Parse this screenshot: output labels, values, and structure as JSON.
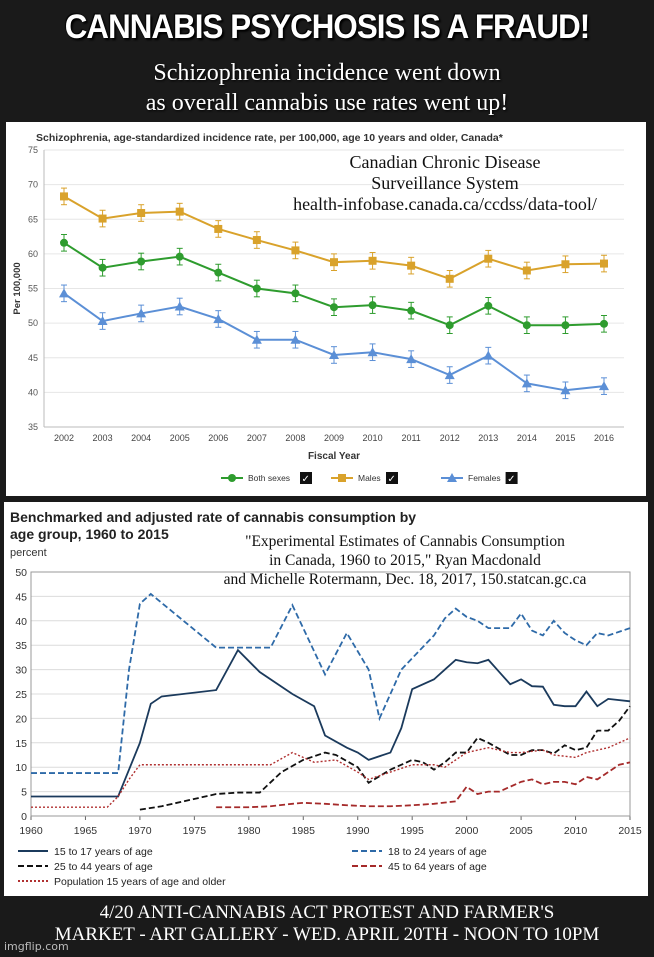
{
  "meme": {
    "title": "CANNABIS PSYCHOSIS IS A FRAUD!",
    "subtitle_line1": "Schizophrenia incidence went down",
    "subtitle_line2": "as overall cannabis use rates went up!",
    "footer_line1": "4/20 ANTI-CANNABIS ACT PROTEST AND FARMER'S",
    "footer_line2": "MARKET - ART GALLERY - WED. APRIL 20TH - NOON TO 10PM",
    "watermark": "imgflip.com"
  },
  "overlays": {
    "source1": [
      "Canadian Chronic Disease",
      "Surveillance System",
      "health-infobase.canada.ca/ccdss/data-tool/"
    ],
    "source2": [
      "\"Experimental Estimates of Cannabis Consumption",
      "in Canada, 1960 to 2015,\" Ryan Macdonald",
      "and Michelle Rotermann, Dec. 18, 2017, 150.statcan.gc.ca"
    ]
  },
  "chart_data": [
    {
      "type": "line",
      "title": "Schizophrenia, age-standardized incidence rate, per 100,000, age 10 years and older, Canada*",
      "xlabel": "Fiscal Year",
      "ylabel": "Per 100,000",
      "ylim": [
        35,
        75
      ],
      "yticks": [
        35,
        40,
        45,
        50,
        55,
        60,
        65,
        70,
        75
      ],
      "grid": true,
      "legend_position": "bottom",
      "x": [
        2002,
        2003,
        2004,
        2005,
        2006,
        2007,
        2008,
        2009,
        2010,
        2011,
        2012,
        2013,
        2014,
        2015,
        2016
      ],
      "series": [
        {
          "name": "Both sexes",
          "color": "#2e9c2e",
          "marker": "circle",
          "values": [
            61.6,
            58.0,
            58.9,
            59.6,
            57.3,
            55.0,
            54.3,
            52.3,
            52.6,
            51.8,
            49.7,
            52.5,
            49.7,
            49.7,
            49.9
          ]
        },
        {
          "name": "Males",
          "color": "#d9a22b",
          "marker": "square",
          "values": [
            68.3,
            65.1,
            65.9,
            66.1,
            63.6,
            62.0,
            60.5,
            58.8,
            59.0,
            58.3,
            56.4,
            59.3,
            57.6,
            58.5,
            58.6
          ]
        },
        {
          "name": "Females",
          "color": "#5b8fd6",
          "marker": "triangle",
          "values": [
            54.3,
            50.3,
            51.4,
            52.4,
            50.6,
            47.6,
            47.6,
            45.4,
            45.8,
            44.8,
            42.5,
            45.3,
            41.3,
            40.3,
            40.9
          ]
        }
      ]
    },
    {
      "type": "line",
      "title": "Benchmarked and adjusted rate of cannabis consumption by age group, 1960 to 2015",
      "ylabel": "percent",
      "xlabel": "",
      "ylim": [
        0,
        50
      ],
      "xlim": [
        1960,
        2015
      ],
      "yticks": [
        0,
        5,
        10,
        15,
        20,
        25,
        30,
        35,
        40,
        45,
        50
      ],
      "xticks": [
        1960,
        1965,
        1970,
        1975,
        1980,
        1985,
        1990,
        1995,
        2000,
        2005,
        2010,
        2015
      ],
      "grid": true,
      "legend_position": "bottom",
      "series": [
        {
          "name": "15 to 17 years of age",
          "color": "#1b3a5c",
          "dash": "solid",
          "x": [
            1960,
            1968,
            1970,
            1971,
            1972,
            1977,
            1979,
            1981,
            1984,
            1986,
            1987,
            1989,
            1990,
            1991,
            1993,
            1994,
            1995,
            1997,
            1998,
            1999,
            2000,
            2001,
            2002,
            2003,
            2004,
            2005,
            2006,
            2007,
            2008,
            2009,
            2010,
            2011,
            2012,
            2013,
            2015
          ],
          "y": [
            4,
            4,
            15,
            23,
            24.5,
            25.8,
            34,
            29.5,
            25,
            22.5,
            16.5,
            14,
            13,
            11.5,
            13,
            18,
            26,
            28,
            30,
            32,
            31.5,
            31.3,
            32,
            29.5,
            27,
            28,
            26.6,
            26.5,
            22.8,
            22.5,
            22.5,
            25.5,
            22.5,
            24,
            23.5
          ]
        },
        {
          "name": "18 to 24 years of age",
          "color": "#2e6aa8",
          "dash": "dashed",
          "x": [
            1960,
            1968,
            1969,
            1970,
            1971,
            1977,
            1980,
            1982,
            1984,
            1987,
            1989,
            1991,
            1992,
            1994,
            1997,
            1998,
            1999,
            2000,
            2001,
            2002,
            2004,
            2005,
            2006,
            2007,
            2008,
            2009,
            2010,
            2011,
            2012,
            2013,
            2015
          ],
          "y": [
            8.8,
            8.8,
            30,
            43.5,
            45.5,
            34.5,
            34.5,
            34.5,
            43.2,
            29,
            37.5,
            30,
            20,
            30,
            37,
            40.5,
            42.5,
            40.8,
            40,
            38.5,
            38.5,
            41.5,
            38,
            37,
            40,
            37.5,
            36,
            35,
            37.5,
            37,
            38.5
          ]
        },
        {
          "name": "25 to 44 years of age",
          "color": "#111111",
          "dash": "dashed",
          "x": [
            1970,
            1972,
            1977,
            1979,
            1981,
            1983,
            1985,
            1987,
            1988,
            1990,
            1991,
            1993,
            1995,
            1996,
            1997,
            1998,
            1999,
            2000,
            2001,
            2002,
            2004,
            2005,
            2006,
            2007,
            2008,
            2009,
            2010,
            2011,
            2012,
            2013,
            2014,
            2015
          ],
          "y": [
            1.3,
            2,
            4.5,
            4.8,
            4.8,
            9,
            11.5,
            13,
            12.5,
            10,
            6.8,
            9.5,
            11.5,
            11,
            9.5,
            11,
            13,
            13,
            16,
            15,
            12.5,
            12.5,
            13.5,
            13.5,
            12.8,
            14.5,
            13.5,
            14,
            17.5,
            17.5,
            19.5,
            22.5
          ]
        },
        {
          "name": "45 to 64 years of age",
          "color": "#a52a2a",
          "dash": "dashed",
          "x": [
            1977,
            1980,
            1982,
            1984,
            1985,
            1987,
            1989,
            1991,
            1993,
            1995,
            1997,
            1999,
            2000,
            2001,
            2002,
            2003,
            2004,
            2005,
            2006,
            2007,
            2008,
            2009,
            2010,
            2011,
            2012,
            2013,
            2014,
            2015
          ],
          "y": [
            1.8,
            1.8,
            2,
            2.5,
            2.7,
            2.5,
            2.2,
            2,
            2,
            2.2,
            2.5,
            3,
            6,
            4.5,
            5,
            5,
            6,
            7,
            7.5,
            6.5,
            7,
            7,
            6.5,
            8,
            7.5,
            9,
            10.5,
            11
          ]
        },
        {
          "name": "Population 15 years of age and older",
          "color": "#b03030",
          "dash": "dotted",
          "x": [
            1960,
            1967,
            1968,
            1969,
            1970,
            1972,
            1975,
            1977,
            1980,
            1982,
            1984,
            1986,
            1988,
            1990,
            1991,
            1993,
            1995,
            1997,
            1998,
            2000,
            2002,
            2004,
            2005,
            2007,
            2008,
            2010,
            2011,
            2013,
            2015
          ],
          "y": [
            1.8,
            1.8,
            4,
            7.5,
            10.5,
            10.5,
            10.5,
            10.5,
            10.5,
            10.5,
            13,
            11,
            11.5,
            9,
            7.5,
            9,
            10.5,
            10.5,
            10,
            13,
            14,
            13,
            13,
            13.5,
            12.5,
            12,
            13,
            14,
            16
          ]
        }
      ]
    }
  ]
}
